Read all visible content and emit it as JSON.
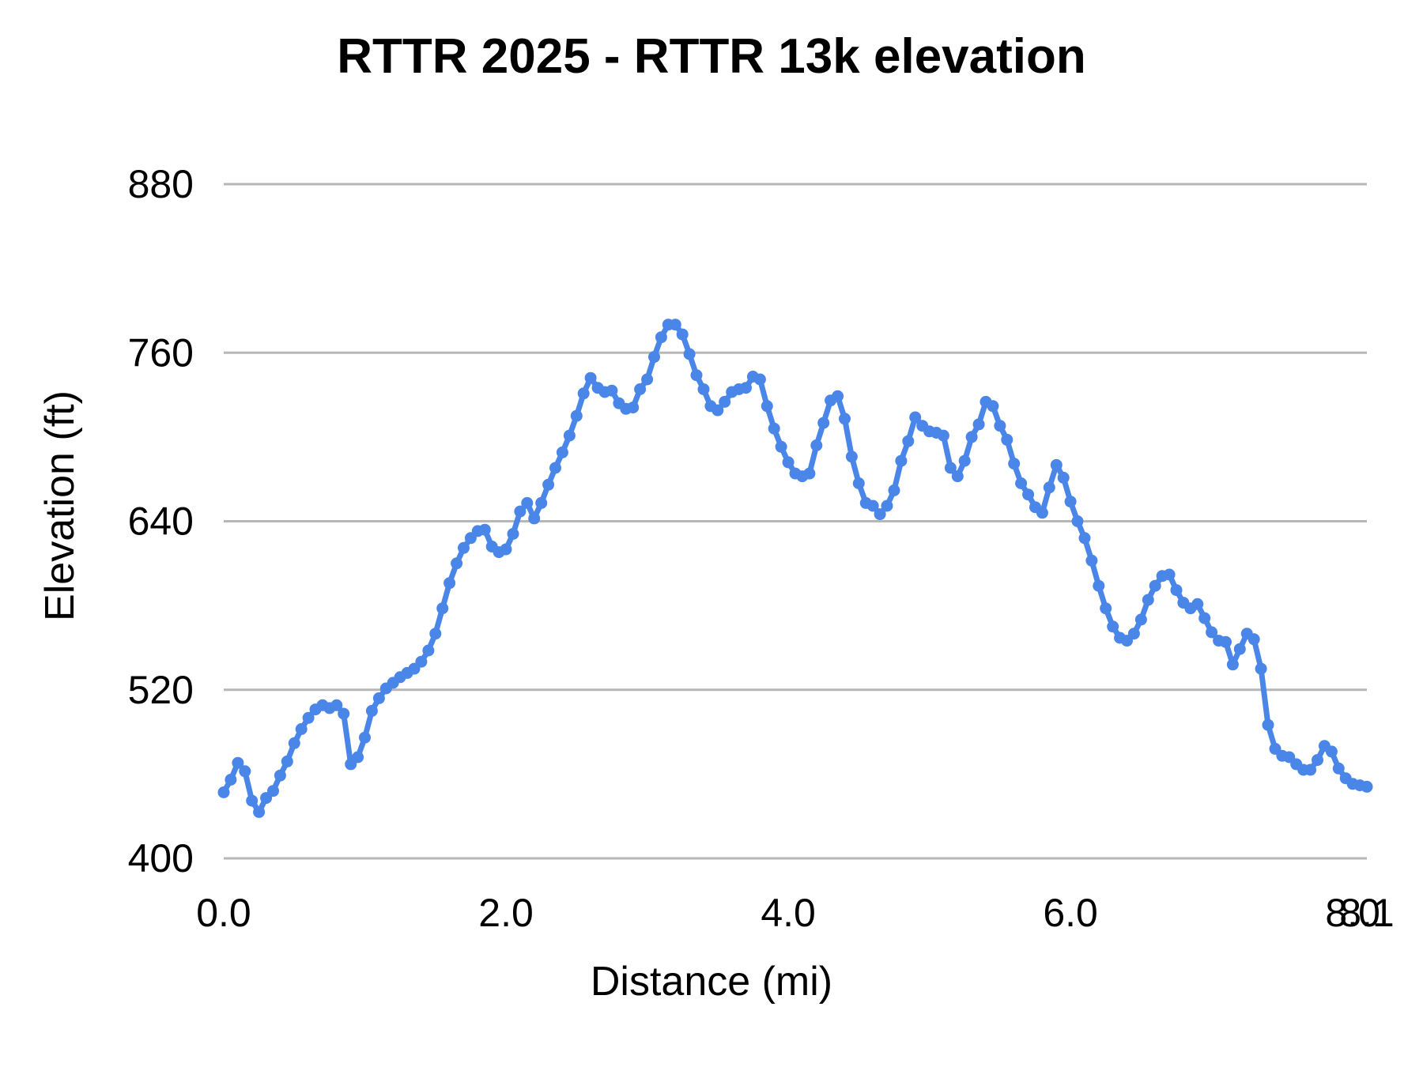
{
  "chart_data": {
    "type": "line",
    "title": "RTTR 2025 - RTTR 13k elevation",
    "xlabel": "Distance (mi)",
    "ylabel": "Elevation (ft)",
    "xlim": [
      0,
      8.1
    ],
    "ylim": [
      400,
      880
    ],
    "grid": true,
    "legend": false,
    "marker_style": "filled-circle",
    "series_color": "#4a86e8",
    "gridline_color": "#b7b7b7",
    "text_color": "#000000",
    "x_ticks": [
      {
        "value": 0,
        "label": "0.0"
      },
      {
        "value": 2,
        "label": "2.0"
      },
      {
        "value": 4,
        "label": "4.0"
      },
      {
        "value": 6,
        "label": "6.0"
      },
      {
        "value": 8,
        "label": "8.0"
      },
      {
        "value": 8.1,
        "label": "8.1"
      }
    ],
    "y_ticks": [
      {
        "value": 400,
        "label": "400"
      },
      {
        "value": 520,
        "label": "520"
      },
      {
        "value": 640,
        "label": "640"
      },
      {
        "value": 760,
        "label": "760"
      },
      {
        "value": 880,
        "label": "880"
      }
    ],
    "series": [
      {
        "name": "elevation",
        "x": [
          0,
          0.05,
          0.1,
          0.15,
          0.2,
          0.25,
          0.3,
          0.35,
          0.4,
          0.45,
          0.5,
          0.55,
          0.6,
          0.65,
          0.7,
          0.75,
          0.8,
          0.85,
          0.9,
          0.95,
          1,
          1.05,
          1.1,
          1.15,
          1.2,
          1.25,
          1.3,
          1.35,
          1.4,
          1.45,
          1.5,
          1.55,
          1.6,
          1.65,
          1.7,
          1.75,
          1.8,
          1.85,
          1.9,
          1.95,
          2,
          2.05,
          2.1,
          2.15,
          2.2,
          2.25,
          2.3,
          2.35,
          2.4,
          2.45,
          2.5,
          2.55,
          2.6,
          2.65,
          2.7,
          2.75,
          2.8,
          2.85,
          2.9,
          2.95,
          3,
          3.05,
          3.1,
          3.15,
          3.2,
          3.25,
          3.3,
          3.35,
          3.4,
          3.45,
          3.5,
          3.55,
          3.6,
          3.65,
          3.7,
          3.75,
          3.8,
          3.85,
          3.9,
          3.95,
          4,
          4.05,
          4.1,
          4.15,
          4.2,
          4.25,
          4.3,
          4.35,
          4.4,
          4.45,
          4.5,
          4.55,
          4.6,
          4.65,
          4.7,
          4.75,
          4.8,
          4.85,
          4.9,
          4.95,
          5,
          5.05,
          5.1,
          5.15,
          5.2,
          5.25,
          5.3,
          5.35,
          5.4,
          5.45,
          5.5,
          5.55,
          5.6,
          5.65,
          5.7,
          5.75,
          5.8,
          5.85,
          5.9,
          5.95,
          6,
          6.05,
          6.1,
          6.15,
          6.2,
          6.25,
          6.3,
          6.35,
          6.4,
          6.45,
          6.5,
          6.55,
          6.6,
          6.65,
          6.7,
          6.75,
          6.8,
          6.85,
          6.9,
          6.95,
          7,
          7.05,
          7.1,
          7.15,
          7.2,
          7.25,
          7.3,
          7.35,
          7.4,
          7.45,
          7.5,
          7.55,
          7.6,
          7.65,
          7.7,
          7.75,
          7.8,
          7.85,
          7.9,
          7.95,
          8,
          8.05,
          8.1
        ],
        "y": [
          447,
          456,
          468,
          462,
          441,
          433,
          443,
          448,
          459,
          469,
          482,
          492,
          500,
          506,
          509,
          507,
          509,
          503,
          467,
          472,
          486,
          505,
          514,
          521,
          525,
          529,
          532,
          535,
          540,
          548,
          560,
          578,
          596,
          610,
          621,
          628,
          633,
          634,
          622,
          618,
          620,
          631,
          647,
          653,
          642,
          653,
          666,
          678,
          689,
          701,
          715,
          731,
          742,
          735,
          732,
          733,
          724,
          720,
          721,
          734,
          741,
          757,
          771,
          780,
          780,
          773,
          759,
          744,
          734,
          722,
          719,
          725,
          732,
          734,
          735,
          743,
          741,
          722,
          706,
          693,
          682,
          674,
          672,
          674,
          694,
          710,
          726,
          729,
          713,
          686,
          667,
          653,
          651,
          645,
          651,
          662,
          683,
          697,
          714,
          708,
          704,
          703,
          701,
          678,
          672,
          683,
          700,
          709,
          725,
          722,
          708,
          698,
          681,
          667,
          659,
          650,
          646,
          664,
          680,
          671,
          654,
          640,
          628,
          612,
          594,
          578,
          565,
          557,
          555,
          560,
          570,
          584,
          594,
          601,
          602,
          591,
          582,
          578,
          581,
          571,
          561,
          555,
          554,
          538,
          549,
          560,
          556,
          535,
          495,
          478,
          473,
          472,
          467,
          463,
          463,
          470,
          480,
          476,
          464,
          457,
          453,
          452,
          451
        ]
      }
    ]
  }
}
